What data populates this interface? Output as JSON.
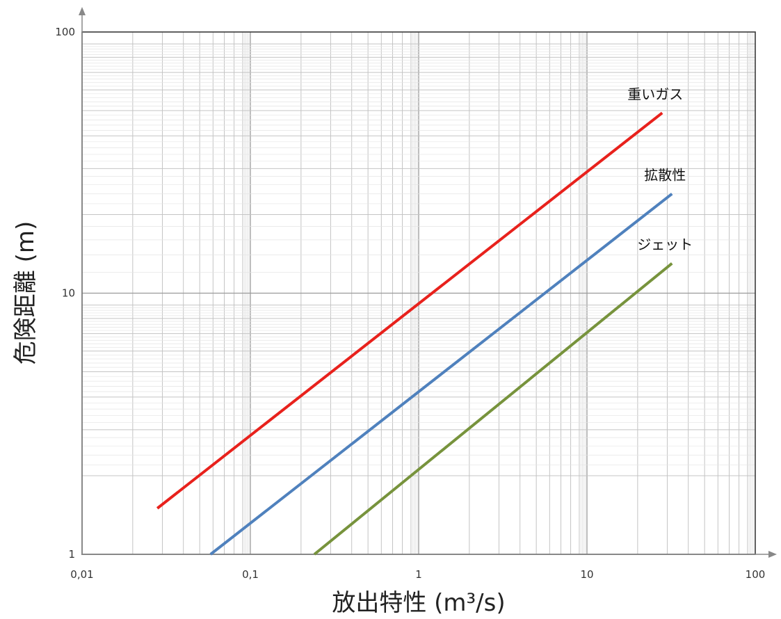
{
  "chart_data": {
    "type": "line",
    "xscale": "log",
    "yscale": "log",
    "xlim": [
      0.01,
      100
    ],
    "ylim": [
      1,
      100
    ],
    "xlabel": "放出特性 (m³/s)",
    "ylabel": "危険距離 (m)",
    "x_ticks": [
      0.01,
      0.1,
      1,
      10,
      100
    ],
    "x_tick_labels": [
      "0,01",
      "0,1",
      "1",
      "10",
      "100"
    ],
    "y_ticks": [
      1,
      10,
      100
    ],
    "y_tick_labels": [
      "1",
      "10",
      "100"
    ],
    "grid": true,
    "series": [
      {
        "name": "重いガス",
        "color": "#e8211c",
        "x": [
          0.028,
          28
        ],
        "y": [
          1.5,
          49
        ]
      },
      {
        "name": "拡散性",
        "color": "#4f81bd",
        "x": [
          0.058,
          32
        ],
        "y": [
          1.0,
          24
        ]
      },
      {
        "name": "ジェット",
        "color": "#77933c",
        "x": [
          0.24,
          32
        ],
        "y": [
          1.0,
          13
        ]
      }
    ]
  }
}
